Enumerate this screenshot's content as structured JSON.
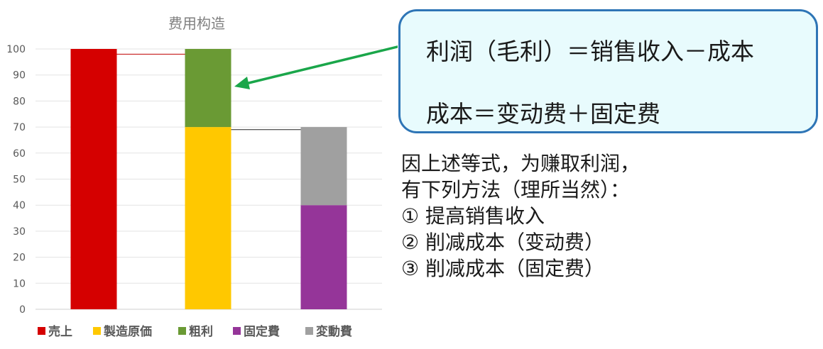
{
  "chart_data": {
    "type": "bar",
    "stacked": true,
    "title": "费用构造",
    "ylim": [
      0,
      100
    ],
    "yticks": [
      0,
      10,
      20,
      30,
      40,
      50,
      60,
      70,
      80,
      90,
      100
    ],
    "grid": true,
    "legend_position": "bottom",
    "bars": [
      {
        "segments": [
          {
            "series": "売上",
            "value": 100
          }
        ]
      },
      {
        "segments": [
          {
            "series": "製造原価",
            "value": 70
          },
          {
            "series": "粗利",
            "value": 30
          }
        ]
      },
      {
        "segments": [
          {
            "series": "固定費",
            "value": 40
          },
          {
            "series": "変動費",
            "value": 30
          }
        ]
      }
    ],
    "series": [
      {
        "name": "売上",
        "color": "#d50000"
      },
      {
        "name": "製造原価",
        "color": "#ffc800"
      },
      {
        "name": "粗利",
        "color": "#6a9a34"
      },
      {
        "name": "固定費",
        "color": "#953599"
      },
      {
        "name": "変動費",
        "color": "#a0a0a0"
      }
    ],
    "connectors": [
      {
        "from_bar": 0,
        "to_bar": 1,
        "value": 98,
        "color": "#c00000"
      },
      {
        "from_bar": 1,
        "to_bar": 2,
        "value": 69,
        "color": "#222222"
      }
    ]
  },
  "formula_box": {
    "line1": "利润（毛利）＝销售收入－成本",
    "line2": "成本＝变动费＋固定费"
  },
  "arrow": {
    "color": "#1aa64a"
  },
  "explanation": {
    "line1": "因上述等式，为赚取利润，",
    "line2": "有下列方法（理所当然）：",
    "line3": "① 提高销售收入",
    "line4": "② 削减成本（变动费）",
    "line5": "③ 削减成本（固定费）"
  }
}
